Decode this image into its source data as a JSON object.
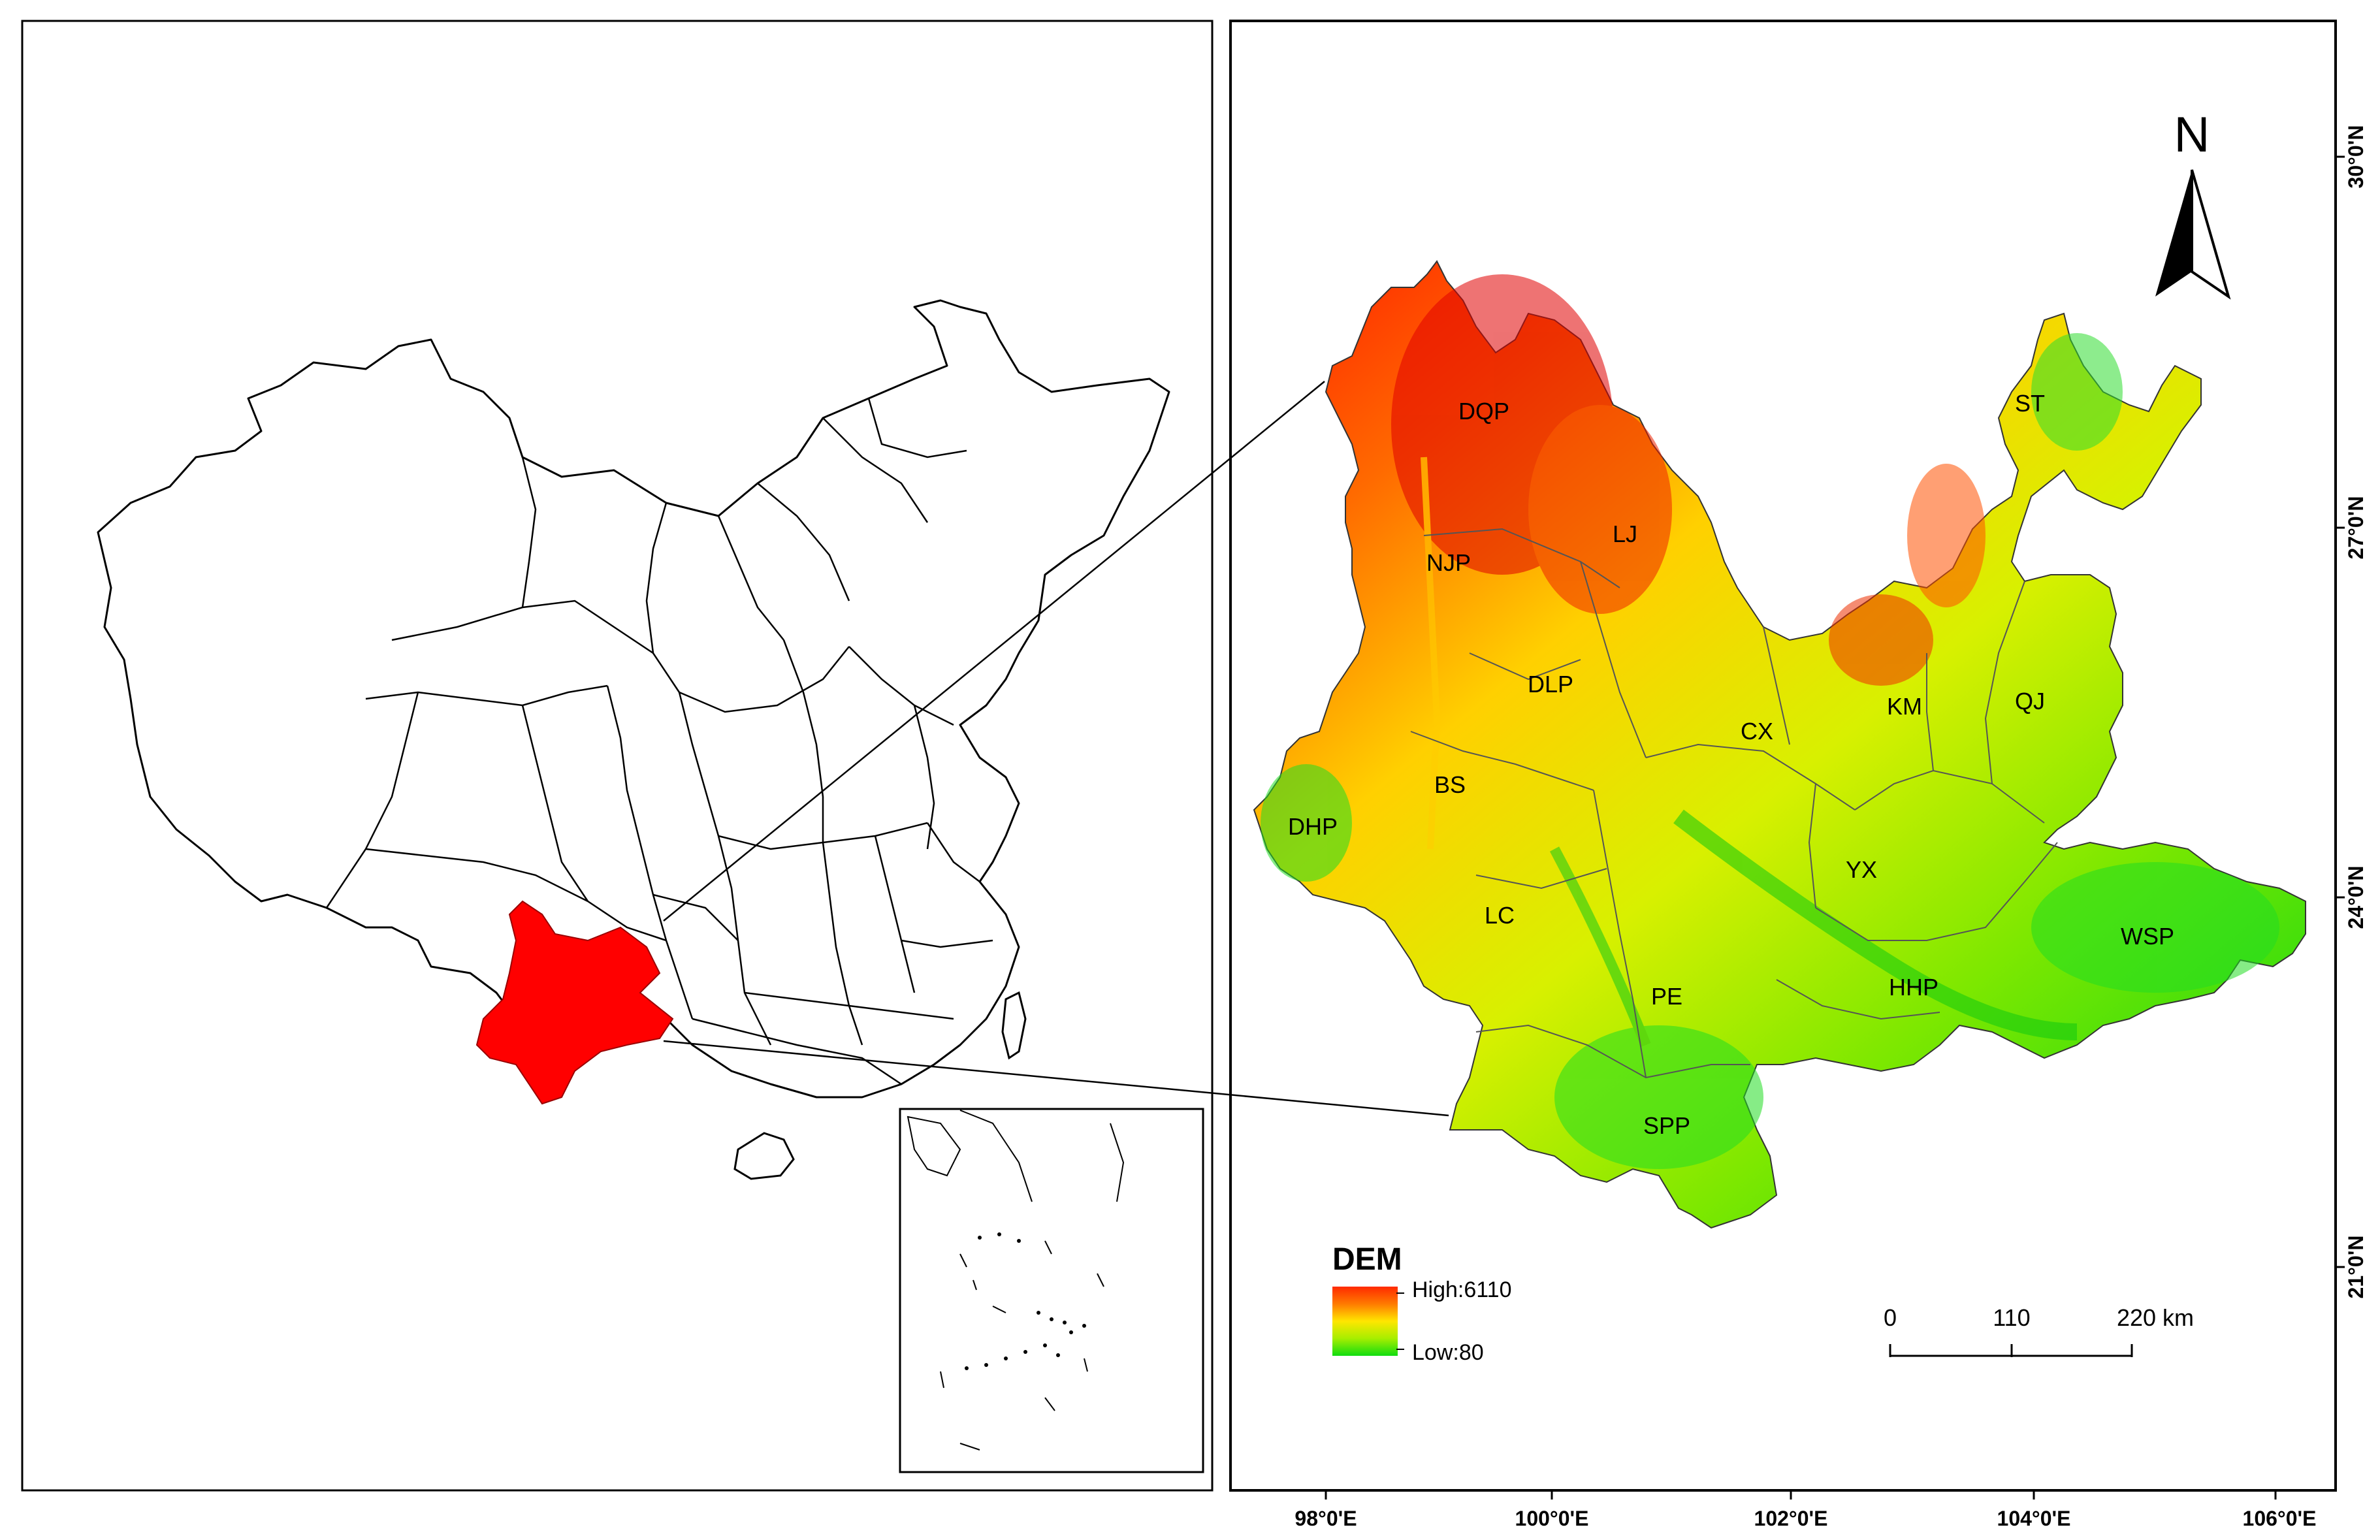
{
  "locator_panel": {
    "highlight_color": "#ff0000"
  },
  "main_map": {
    "north_arrow": {
      "letter": "N",
      "icon": "north-arrow-icon"
    },
    "region_labels": [
      "DQP",
      "LJ",
      "NJP",
      "DLP",
      "BS",
      "DHP",
      "CX",
      "KM",
      "QJ",
      "ST",
      "YX",
      "LC",
      "PE",
      "HHP",
      "WSP",
      "SPP"
    ],
    "legend": {
      "title": "DEM",
      "high_label": "High:6110",
      "low_label": "Low:80",
      "ramp_colors": [
        "#ff2000",
        "#ff8c00",
        "#ffea00",
        "#9bf000",
        "#10e010"
      ]
    },
    "scale_bar": {
      "ticks": [
        "0",
        "110",
        "220 km"
      ]
    },
    "longitude_labels": [
      "98°0'E",
      "100°0'E",
      "102°0'E",
      "104°0'E",
      "106°0'E"
    ],
    "latitude_labels": [
      "30°0'N",
      "27°0'N",
      "24°0'N",
      "21°0'N"
    ]
  }
}
